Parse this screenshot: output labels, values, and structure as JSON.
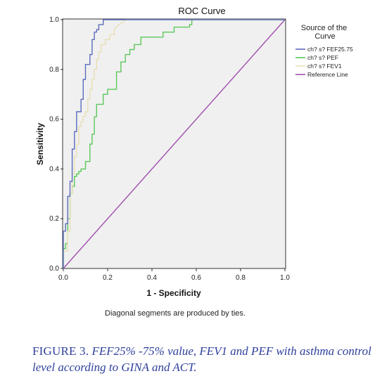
{
  "chart_data": {
    "type": "line",
    "title": "ROC Curve",
    "xlabel": "1 - Specificity",
    "ylabel": "Sensitivity",
    "xlim": [
      0,
      1
    ],
    "ylim": [
      0,
      1
    ],
    "xticks": [
      "0.0",
      "0.2",
      "0.4",
      "0.6",
      "0.8",
      "1.0"
    ],
    "yticks": [
      "0.0",
      "0.2",
      "0.4",
      "0.6",
      "0.8",
      "1.0"
    ],
    "grid": false,
    "legend_position": "right",
    "legend_title": "Source of the\nCurve",
    "note": "Diagonal segments are produced by ties.",
    "series": [
      {
        "name": "ch? s? FEF25.75",
        "color": "#5b6bbd",
        "x": [
          0.0,
          0.0,
          0.01,
          0.01,
          0.02,
          0.02,
          0.03,
          0.03,
          0.04,
          0.04,
          0.05,
          0.05,
          0.06,
          0.06,
          0.08,
          0.08,
          0.09,
          0.09,
          0.1,
          0.1,
          0.12,
          0.12,
          0.13,
          0.13,
          0.14,
          0.14,
          0.15,
          0.15,
          0.16,
          0.16,
          0.18,
          0.18,
          0.21,
          0.21,
          1.0
        ],
        "y": [
          0.0,
          0.15,
          0.15,
          0.18,
          0.18,
          0.29,
          0.29,
          0.35,
          0.35,
          0.48,
          0.48,
          0.55,
          0.55,
          0.63,
          0.63,
          0.68,
          0.68,
          0.76,
          0.76,
          0.82,
          0.82,
          0.86,
          0.86,
          0.92,
          0.92,
          0.95,
          0.95,
          0.96,
          0.96,
          0.98,
          0.98,
          1.0,
          1.0,
          1.0,
          1.0
        ]
      },
      {
        "name": "ch? s? PEF",
        "color": "#5cc85c",
        "x": [
          0.0,
          0.0,
          0.01,
          0.01,
          0.02,
          0.02,
          0.03,
          0.03,
          0.04,
          0.04,
          0.05,
          0.05,
          0.06,
          0.06,
          0.07,
          0.07,
          0.08,
          0.08,
          0.1,
          0.1,
          0.12,
          0.12,
          0.13,
          0.13,
          0.14,
          0.14,
          0.15,
          0.15,
          0.18,
          0.18,
          0.2,
          0.2,
          0.24,
          0.24,
          0.26,
          0.26,
          0.28,
          0.28,
          0.3,
          0.3,
          0.32,
          0.32,
          0.35,
          0.35,
          0.45,
          0.45,
          0.5,
          0.5,
          0.57,
          0.57,
          0.58,
          0.58,
          1.0
        ],
        "y": [
          0.0,
          0.08,
          0.08,
          0.1,
          0.1,
          0.2,
          0.2,
          0.3,
          0.3,
          0.33,
          0.33,
          0.37,
          0.37,
          0.38,
          0.38,
          0.39,
          0.39,
          0.4,
          0.4,
          0.43,
          0.43,
          0.5,
          0.5,
          0.54,
          0.54,
          0.61,
          0.61,
          0.66,
          0.66,
          0.7,
          0.7,
          0.72,
          0.72,
          0.79,
          0.79,
          0.83,
          0.83,
          0.86,
          0.86,
          0.88,
          0.88,
          0.9,
          0.9,
          0.93,
          0.93,
          0.95,
          0.95,
          0.97,
          0.97,
          0.98,
          0.98,
          1.0,
          1.0
        ]
      },
      {
        "name": "ch? s? FEV1",
        "color": "#e8dfb4",
        "x": [
          0.0,
          0.0,
          0.02,
          0.02,
          0.03,
          0.03,
          0.04,
          0.04,
          0.05,
          0.05,
          0.06,
          0.06,
          0.07,
          0.07,
          0.08,
          0.08,
          0.09,
          0.09,
          0.1,
          0.1,
          0.11,
          0.11,
          0.12,
          0.12,
          0.13,
          0.13,
          0.14,
          0.14,
          0.15,
          0.15,
          0.16,
          0.16,
          0.17,
          0.17,
          0.19,
          0.19,
          0.21,
          0.21,
          0.23,
          0.23,
          0.24,
          0.25,
          0.27,
          0.28,
          1.0
        ],
        "y": [
          0.0,
          0.07,
          0.07,
          0.15,
          0.15,
          0.3,
          0.3,
          0.38,
          0.38,
          0.45,
          0.45,
          0.5,
          0.5,
          0.57,
          0.57,
          0.59,
          0.59,
          0.61,
          0.61,
          0.63,
          0.63,
          0.68,
          0.68,
          0.72,
          0.72,
          0.76,
          0.76,
          0.8,
          0.8,
          0.84,
          0.84,
          0.87,
          0.87,
          0.9,
          0.9,
          0.92,
          0.92,
          0.94,
          0.94,
          0.96,
          0.97,
          0.98,
          0.99,
          1.0,
          1.0
        ]
      },
      {
        "name": "Reference Line",
        "color": "#a04fae",
        "x": [
          0.0,
          1.0
        ],
        "y": [
          0.0,
          1.0
        ]
      }
    ]
  },
  "caption": {
    "lead": "FIGURE 3.",
    "text": "FEF25% -75% value, FEV1 and PEF with asthma control level according to GINA  and ACT."
  }
}
